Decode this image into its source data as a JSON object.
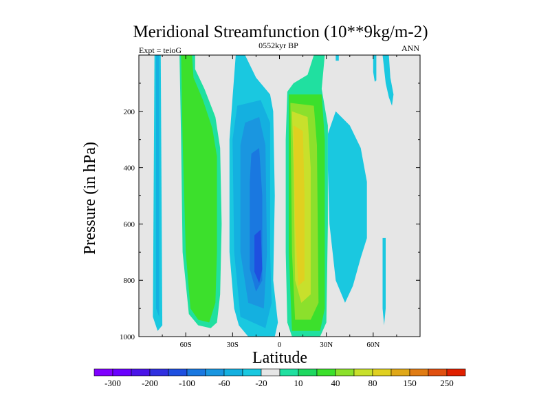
{
  "chart_data": {
    "type": "contour",
    "title": "Meridional Streamfunction (10**9kg/m-2)",
    "subtitle_left": "Expt = teioG",
    "subtitle_center": "0552kyr BP",
    "subtitle_right": "ANN",
    "xlabel": "Latitude",
    "ylabel": "Pressure (in hPa)",
    "xlim": [
      -90,
      90
    ],
    "ylim": [
      1000,
      0
    ],
    "x_ticks": [
      {
        "value": -60,
        "label": "60S"
      },
      {
        "value": -30,
        "label": "30S"
      },
      {
        "value": 0,
        "label": "0"
      },
      {
        "value": 30,
        "label": "30N"
      },
      {
        "value": 60,
        "label": "60N"
      }
    ],
    "y_ticks": [
      {
        "value": 200,
        "label": "200"
      },
      {
        "value": 400,
        "label": "400"
      },
      {
        "value": 600,
        "label": "600"
      },
      {
        "value": 800,
        "label": "800"
      },
      {
        "value": 1000,
        "label": "1000"
      }
    ],
    "background_color": "#e6e6e6",
    "colorbar": {
      "colors": [
        "#7f00ff",
        "#6a00ff",
        "#4a14e8",
        "#3030e0",
        "#1e50e0",
        "#1a78e0",
        "#1a96e0",
        "#14b0e0",
        "#1ac8e0",
        "#e6e6e6",
        "#20e0a0",
        "#1ed860",
        "#3ce02c",
        "#8ce02c",
        "#c8e02c",
        "#e0d020",
        "#e0a818",
        "#e07c14",
        "#e05010",
        "#e02000"
      ],
      "labels": [
        "-300",
        "-200",
        "-100",
        "-60",
        "-20",
        "10",
        "40",
        "80",
        "150",
        "250"
      ]
    },
    "regions": [
      {
        "level": -20,
        "color": "#1ac8e0",
        "name": "sh-polar-neg-outer",
        "points": [
          [
            -80,
            0
          ],
          [
            -76,
            0
          ],
          [
            -75,
            960
          ],
          [
            -78,
            980
          ],
          [
            -81,
            930
          ]
        ]
      },
      {
        "level": -60,
        "color": "#14b0e0",
        "name": "sh-polar-neg-inner",
        "points": [
          [
            -79,
            0
          ],
          [
            -77,
            0
          ],
          [
            -77,
            930
          ],
          [
            -79,
            900
          ]
        ]
      },
      {
        "level": 10,
        "color": "#20e0a0",
        "name": "sh-ferrel-pos-outer",
        "points": [
          [
            -64,
            0
          ],
          [
            -54,
            0
          ],
          [
            -54,
            50
          ],
          [
            -48,
            120
          ],
          [
            -41,
            220
          ],
          [
            -38,
            330
          ],
          [
            -37,
            600
          ],
          [
            -38,
            850
          ],
          [
            -40,
            950
          ],
          [
            -44,
            970
          ],
          [
            -52,
            960
          ],
          [
            -58,
            920
          ],
          [
            -62,
            700
          ],
          [
            -63,
            300
          ]
        ]
      },
      {
        "level": 40,
        "color": "#3ce02c",
        "name": "sh-ferrel-pos-inner",
        "points": [
          [
            -63,
            0
          ],
          [
            -56,
            0
          ],
          [
            -55,
            80
          ],
          [
            -49,
            160
          ],
          [
            -43,
            260
          ],
          [
            -40,
            360
          ],
          [
            -40,
            700
          ],
          [
            -41,
            880
          ],
          [
            -45,
            950
          ],
          [
            -52,
            940
          ],
          [
            -57,
            900
          ],
          [
            -60,
            700
          ],
          [
            -62,
            300
          ]
        ]
      },
      {
        "level": -20,
        "color": "#1ac8e0",
        "name": "sh-hadley-neg-outer",
        "points": [
          [
            -28,
            0
          ],
          [
            -22,
            0
          ],
          [
            -15,
            80
          ],
          [
            -6,
            140
          ],
          [
            -4,
            200
          ],
          [
            -3,
            500
          ],
          [
            -4,
            800
          ],
          [
            -1,
            950
          ],
          [
            -3,
            1000
          ],
          [
            -20,
            1000
          ],
          [
            -26,
            960
          ],
          [
            -29,
            900
          ],
          [
            -32,
            700
          ],
          [
            -32,
            300
          ],
          [
            -30,
            150
          ]
        ]
      },
      {
        "level": -60,
        "color": "#14b0e0",
        "name": "sh-hadley-neg-2",
        "points": [
          [
            -27,
            180
          ],
          [
            -12,
            160
          ],
          [
            -6,
            240
          ],
          [
            -6,
            700
          ],
          [
            -5,
            880
          ],
          [
            -9,
            970
          ],
          [
            -25,
            930
          ],
          [
            -29,
            700
          ],
          [
            -30,
            300
          ]
        ]
      },
      {
        "level": -100,
        "color": "#1a96e0",
        "name": "sh-hadley-neg-3",
        "points": [
          [
            -22,
            240
          ],
          [
            -13,
            220
          ],
          [
            -9,
            320
          ],
          [
            -8,
            700
          ],
          [
            -10,
            900
          ],
          [
            -20,
            880
          ],
          [
            -25,
            700
          ],
          [
            -25,
            320
          ]
        ]
      },
      {
        "level": -150,
        "color": "#1a78e0",
        "name": "sh-hadley-neg-4",
        "points": [
          [
            -18,
            350
          ],
          [
            -13,
            330
          ],
          [
            -11,
            500
          ],
          [
            -11,
            800
          ],
          [
            -15,
            840
          ],
          [
            -19,
            760
          ],
          [
            -19,
            450
          ]
        ]
      },
      {
        "level": -200,
        "color": "#1e50e0",
        "name": "sh-hadley-neg-core",
        "points": [
          [
            -16,
            640
          ],
          [
            -12,
            620
          ],
          [
            -11,
            760
          ],
          [
            -13,
            810
          ],
          [
            -16,
            770
          ]
        ]
      },
      {
        "level": 10,
        "color": "#20e0a0",
        "name": "nh-hadley-pos-outer",
        "points": [
          [
            22,
            0
          ],
          [
            29,
            0
          ],
          [
            27,
            120
          ],
          [
            31,
            250
          ],
          [
            31,
            600
          ],
          [
            30,
            950
          ],
          [
            26,
            1000
          ],
          [
            8,
            1000
          ],
          [
            5,
            950
          ],
          [
            4,
            700
          ],
          [
            4,
            300
          ],
          [
            5,
            130
          ],
          [
            9,
            100
          ],
          [
            18,
            70
          ]
        ]
      },
      {
        "level": 40,
        "color": "#3ce02c",
        "name": "nh-hadley-pos-2",
        "points": [
          [
            6,
            140
          ],
          [
            27,
            140
          ],
          [
            29,
            300
          ],
          [
            29,
            900
          ],
          [
            26,
            980
          ],
          [
            8,
            980
          ],
          [
            6,
            700
          ]
        ]
      },
      {
        "level": 80,
        "color": "#8ce02c",
        "name": "nh-hadley-pos-3",
        "points": [
          [
            7,
            170
          ],
          [
            22,
            180
          ],
          [
            24,
            320
          ],
          [
            25,
            880
          ],
          [
            20,
            940
          ],
          [
            10,
            940
          ],
          [
            8,
            700
          ]
        ]
      },
      {
        "level": 100,
        "color": "#c8e02c",
        "name": "nh-hadley-pos-4",
        "points": [
          [
            8,
            200
          ],
          [
            18,
            220
          ],
          [
            20,
            400
          ],
          [
            20,
            850
          ],
          [
            14,
            880
          ],
          [
            10,
            800
          ],
          [
            9,
            400
          ]
        ]
      },
      {
        "level": 150,
        "color": "#e0d020",
        "name": "nh-hadley-pos-core",
        "points": [
          [
            9,
            250
          ],
          [
            15,
            270
          ],
          [
            16,
            500
          ],
          [
            16,
            800
          ],
          [
            12,
            820
          ],
          [
            10,
            600
          ]
        ]
      },
      {
        "level": -20,
        "color": "#1ac8e0",
        "name": "nh-ferrel-neg-blob",
        "points": [
          [
            31,
            280
          ],
          [
            36,
            200
          ],
          [
            45,
            250
          ],
          [
            52,
            330
          ],
          [
            56,
            450
          ],
          [
            56,
            650
          ],
          [
            52,
            720
          ],
          [
            47,
            820
          ],
          [
            42,
            880
          ],
          [
            36,
            800
          ],
          [
            32,
            600
          ],
          [
            31,
            400
          ]
        ]
      },
      {
        "level": -20,
        "color": "#1ac8e0",
        "name": "nh-upper-neg-blob",
        "points": [
          [
            36,
            0
          ],
          [
            38,
            0
          ],
          [
            38,
            20
          ],
          [
            36,
            20
          ]
        ]
      },
      {
        "level": -20,
        "color": "#1ac8e0",
        "name": "nh-polar-neg-tall",
        "points": [
          [
            66,
            0
          ],
          [
            70,
            0
          ],
          [
            71,
            80
          ],
          [
            73,
            140
          ],
          [
            72,
            180
          ],
          [
            70,
            150
          ],
          [
            68,
            100
          ]
        ]
      },
      {
        "level": -20,
        "color": "#1ac8e0",
        "name": "nh-polar-neg-short",
        "points": [
          [
            60,
            0
          ],
          [
            62,
            0
          ],
          [
            62,
            90
          ],
          [
            61,
            95
          ],
          [
            60,
            60
          ]
        ]
      },
      {
        "level": -20,
        "color": "#1ac8e0",
        "name": "nh-polar-neg-low",
        "points": [
          [
            66,
            650
          ],
          [
            68,
            650
          ],
          [
            68,
            900
          ],
          [
            67,
            960
          ],
          [
            66,
            900
          ]
        ]
      }
    ]
  }
}
